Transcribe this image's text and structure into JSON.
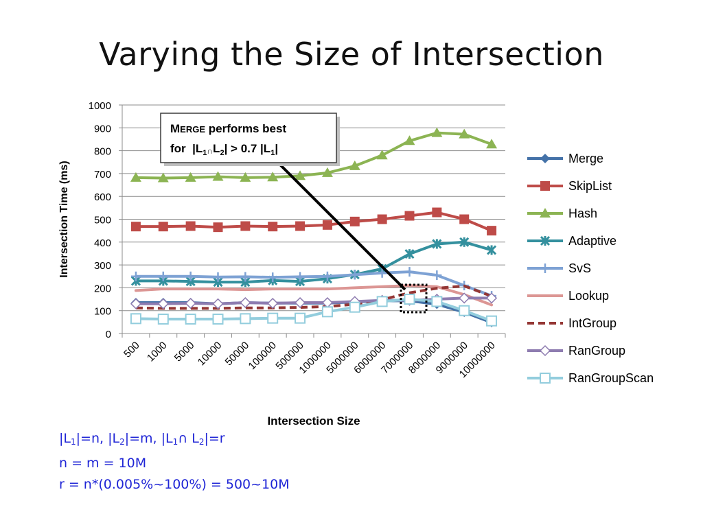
{
  "slide": {
    "title": "Varying the Size of Intersection"
  },
  "notes": {
    "line1_parts": [
      "|L",
      "1",
      "|=n, |L",
      "2",
      "|=m, |L",
      "1",
      "∩ L",
      "2",
      "|=r"
    ],
    "line2": "n = m = 10M",
    "line3": "r = n*(0.005%~100%) = 500~10M"
  },
  "callout": {
    "line1_first": "M",
    "line1_caps": "ERGE",
    "line1_rest": " performs best",
    "line2_parts": [
      "for  |L",
      "1",
      "∩",
      "L",
      "2",
      "| > 0.7 |L",
      "1",
      "|"
    ]
  },
  "chart_data": {
    "type": "line",
    "title": "",
    "xlabel": "Intersection Size",
    "ylabel": "Intersection Time (ms)",
    "ylim": [
      0,
      1000
    ],
    "yticks": [
      "0",
      "100",
      "200",
      "300",
      "400",
      "500",
      "600",
      "700",
      "800",
      "900",
      "1000"
    ],
    "categories": [
      "500",
      "1000",
      "5000",
      "10000",
      "50000",
      "100000",
      "500000",
      "1000000",
      "5000000",
      "6000000",
      "7000000",
      "8000000",
      "9000000",
      "10000000"
    ],
    "grid": true,
    "legend_position": "right",
    "series": [
      {
        "name": "Merge",
        "color": "#4472a8",
        "marker": "diamond",
        "values": [
          135,
          135,
          135,
          130,
          135,
          133,
          133,
          133,
          138,
          143,
          143,
          128,
          93,
          48
        ]
      },
      {
        "name": "SkipList",
        "color": "#be4b48",
        "marker": "square",
        "values": [
          468,
          468,
          470,
          465,
          470,
          468,
          470,
          475,
          490,
          500,
          515,
          530,
          500,
          450
        ]
      },
      {
        "name": "Hash",
        "color": "#8cb453",
        "marker": "triangle",
        "values": [
          682,
          680,
          682,
          686,
          682,
          684,
          690,
          703,
          733,
          780,
          843,
          878,
          872,
          828
        ]
      },
      {
        "name": "Adaptive",
        "color": "#34909e",
        "marker": "asterisk",
        "values": [
          230,
          230,
          228,
          225,
          225,
          232,
          228,
          240,
          258,
          283,
          348,
          392,
          400,
          365
        ]
      },
      {
        "name": "SvS",
        "color": "#7ea2d4",
        "marker": "plus",
        "values": [
          250,
          250,
          250,
          247,
          248,
          246,
          248,
          250,
          257,
          265,
          270,
          255,
          210,
          165
        ]
      },
      {
        "name": "Lookup",
        "color": "#dc9694",
        "marker": "none",
        "values": [
          188,
          195,
          195,
          195,
          192,
          195,
          195,
          195,
          200,
          205,
          210,
          205,
          170,
          125
        ]
      },
      {
        "name": "IntGroup",
        "color": "#943634",
        "marker": "dashed",
        "values": [
          112,
          110,
          110,
          110,
          112,
          112,
          114,
          118,
          128,
          148,
          178,
          198,
          208,
          163
        ]
      },
      {
        "name": "RanGroup",
        "color": "#8e7cb0",
        "marker": "diamond-open",
        "values": [
          130,
          130,
          132,
          130,
          135,
          132,
          135,
          135,
          140,
          145,
          145,
          150,
          155,
          155
        ]
      },
      {
        "name": "RanGroupScan",
        "color": "#93cddd",
        "marker": "square-open",
        "values": [
          65,
          63,
          63,
          63,
          65,
          67,
          67,
          95,
          115,
          140,
          150,
          140,
          100,
          55
        ]
      }
    ]
  }
}
